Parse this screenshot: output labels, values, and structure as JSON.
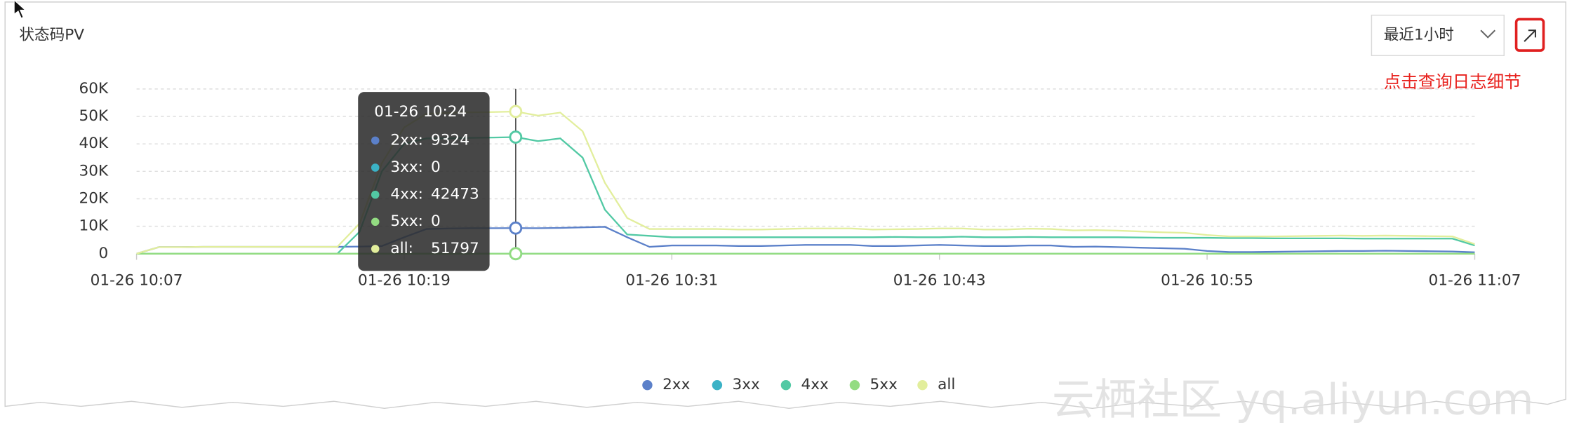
{
  "title": "状态码PV",
  "range_select": "最近1小时",
  "annotation": "点击查询日志细节",
  "watermark": "云栖社区 yq.aliyun.com",
  "chart_data": {
    "type": "line",
    "categories": [
      "01-26 10:07",
      null,
      null,
      null,
      null,
      null,
      null,
      null,
      null,
      null,
      null,
      null,
      "01-26 10:19",
      null,
      null,
      null,
      null,
      "01-26 10:24",
      null,
      null,
      null,
      null,
      null,
      null,
      "01-26 10:31",
      null,
      null,
      null,
      null,
      null,
      null,
      null,
      null,
      null,
      null,
      null,
      "01-26 10:43",
      null,
      null,
      null,
      null,
      null,
      null,
      null,
      null,
      null,
      null,
      null,
      "01-26 10:55",
      null,
      null,
      null,
      null,
      null,
      null,
      null,
      null,
      null,
      null,
      null,
      "01-26 11:07"
    ],
    "series": [
      {
        "name": "2xx",
        "color": "#5b80c9",
        "values": [
          0,
          2400,
          2400,
          2500,
          2500,
          2500,
          2500,
          2500,
          2500,
          2500,
          2600,
          2800,
          6000,
          9000,
          9200,
          9300,
          9300,
          9324,
          9300,
          9400,
          9600,
          9800,
          6000,
          2500,
          3000,
          3000,
          3000,
          2800,
          2800,
          3000,
          3200,
          3200,
          3200,
          2800,
          2800,
          3000,
          3200,
          3000,
          2800,
          2800,
          3000,
          3000,
          2500,
          2600,
          2400,
          2200,
          2000,
          1800,
          1000,
          600,
          600,
          700,
          800,
          900,
          1000,
          1000,
          1100,
          1000,
          900,
          800,
          500
        ]
      },
      {
        "name": "3xx",
        "color": "#3bb2c6",
        "values": [
          0,
          0,
          0,
          0,
          0,
          0,
          0,
          0,
          0,
          0,
          0,
          0,
          0,
          0,
          0,
          0,
          0,
          0,
          0,
          0,
          0,
          0,
          0,
          0,
          0,
          0,
          0,
          0,
          0,
          0,
          0,
          0,
          0,
          0,
          0,
          0,
          0,
          0,
          0,
          0,
          0,
          0,
          0,
          0,
          0,
          0,
          0,
          0,
          0,
          0,
          0,
          0,
          0,
          0,
          0,
          0,
          0,
          0,
          0,
          0,
          0
        ]
      },
      {
        "name": "4xx",
        "color": "#52c9a4",
        "values": [
          0,
          0,
          0,
          0,
          0,
          0,
          0,
          0,
          0,
          0,
          8000,
          30000,
          40000,
          42000,
          42000,
          42200,
          42300,
          42473,
          41000,
          42000,
          35000,
          16000,
          7000,
          6500,
          6000,
          6000,
          6000,
          6000,
          6000,
          6000,
          6000,
          6000,
          6000,
          6000,
          6100,
          6000,
          6000,
          6200,
          6000,
          6000,
          6100,
          6000,
          6000,
          6000,
          6000,
          5900,
          5800,
          5800,
          5800,
          5700,
          5700,
          5600,
          5600,
          5600,
          5600,
          5500,
          5500,
          5500,
          5500,
          5500,
          3000
        ]
      },
      {
        "name": "5xx",
        "color": "#93dc82",
        "values": [
          0,
          0,
          0,
          0,
          0,
          0,
          0,
          0,
          0,
          0,
          0,
          0,
          0,
          0,
          0,
          0,
          0,
          0,
          0,
          0,
          0,
          0,
          0,
          0,
          0,
          0,
          0,
          0,
          0,
          0,
          0,
          0,
          0,
          0,
          0,
          0,
          0,
          0,
          0,
          0,
          0,
          0,
          0,
          0,
          0,
          0,
          0,
          0,
          0,
          0,
          0,
          0,
          0,
          0,
          0,
          0,
          0,
          0,
          0,
          0,
          0
        ]
      },
      {
        "name": "all",
        "color": "#e2ee9c",
        "values": [
          0,
          2400,
          2400,
          2500,
          2500,
          2500,
          2500,
          2500,
          2500,
          2500,
          11000,
          33000,
          46000,
          51000,
          51300,
          51500,
          51600,
          51797,
          50300,
          51400,
          44600,
          25800,
          13000,
          9000,
          9000,
          9000,
          9000,
          8800,
          8800,
          9000,
          9200,
          9200,
          9200,
          8800,
          8900,
          9000,
          9200,
          9200,
          8800,
          8800,
          9100,
          9000,
          8500,
          8600,
          8400,
          8100,
          7800,
          7600,
          6800,
          6300,
          6300,
          6300,
          6400,
          6500,
          6600,
          6500,
          6600,
          6500,
          6400,
          6300,
          3500
        ]
      }
    ],
    "ylim": [
      0,
      60000
    ],
    "yticks": [
      0,
      {
        "value": 10000,
        "label": "10K"
      },
      {
        "value": 20000,
        "label": "20K"
      },
      {
        "value": 30000,
        "label": "30K"
      },
      {
        "value": 40000,
        "label": "40K"
      },
      {
        "value": 50000,
        "label": "50K"
      },
      {
        "value": 60000,
        "label": "60K"
      }
    ],
    "grid": true,
    "tooltip": {
      "labels": [
        "2xx:",
        "3xx:",
        "4xx:",
        "5xx:",
        "all:"
      ]
    }
  }
}
